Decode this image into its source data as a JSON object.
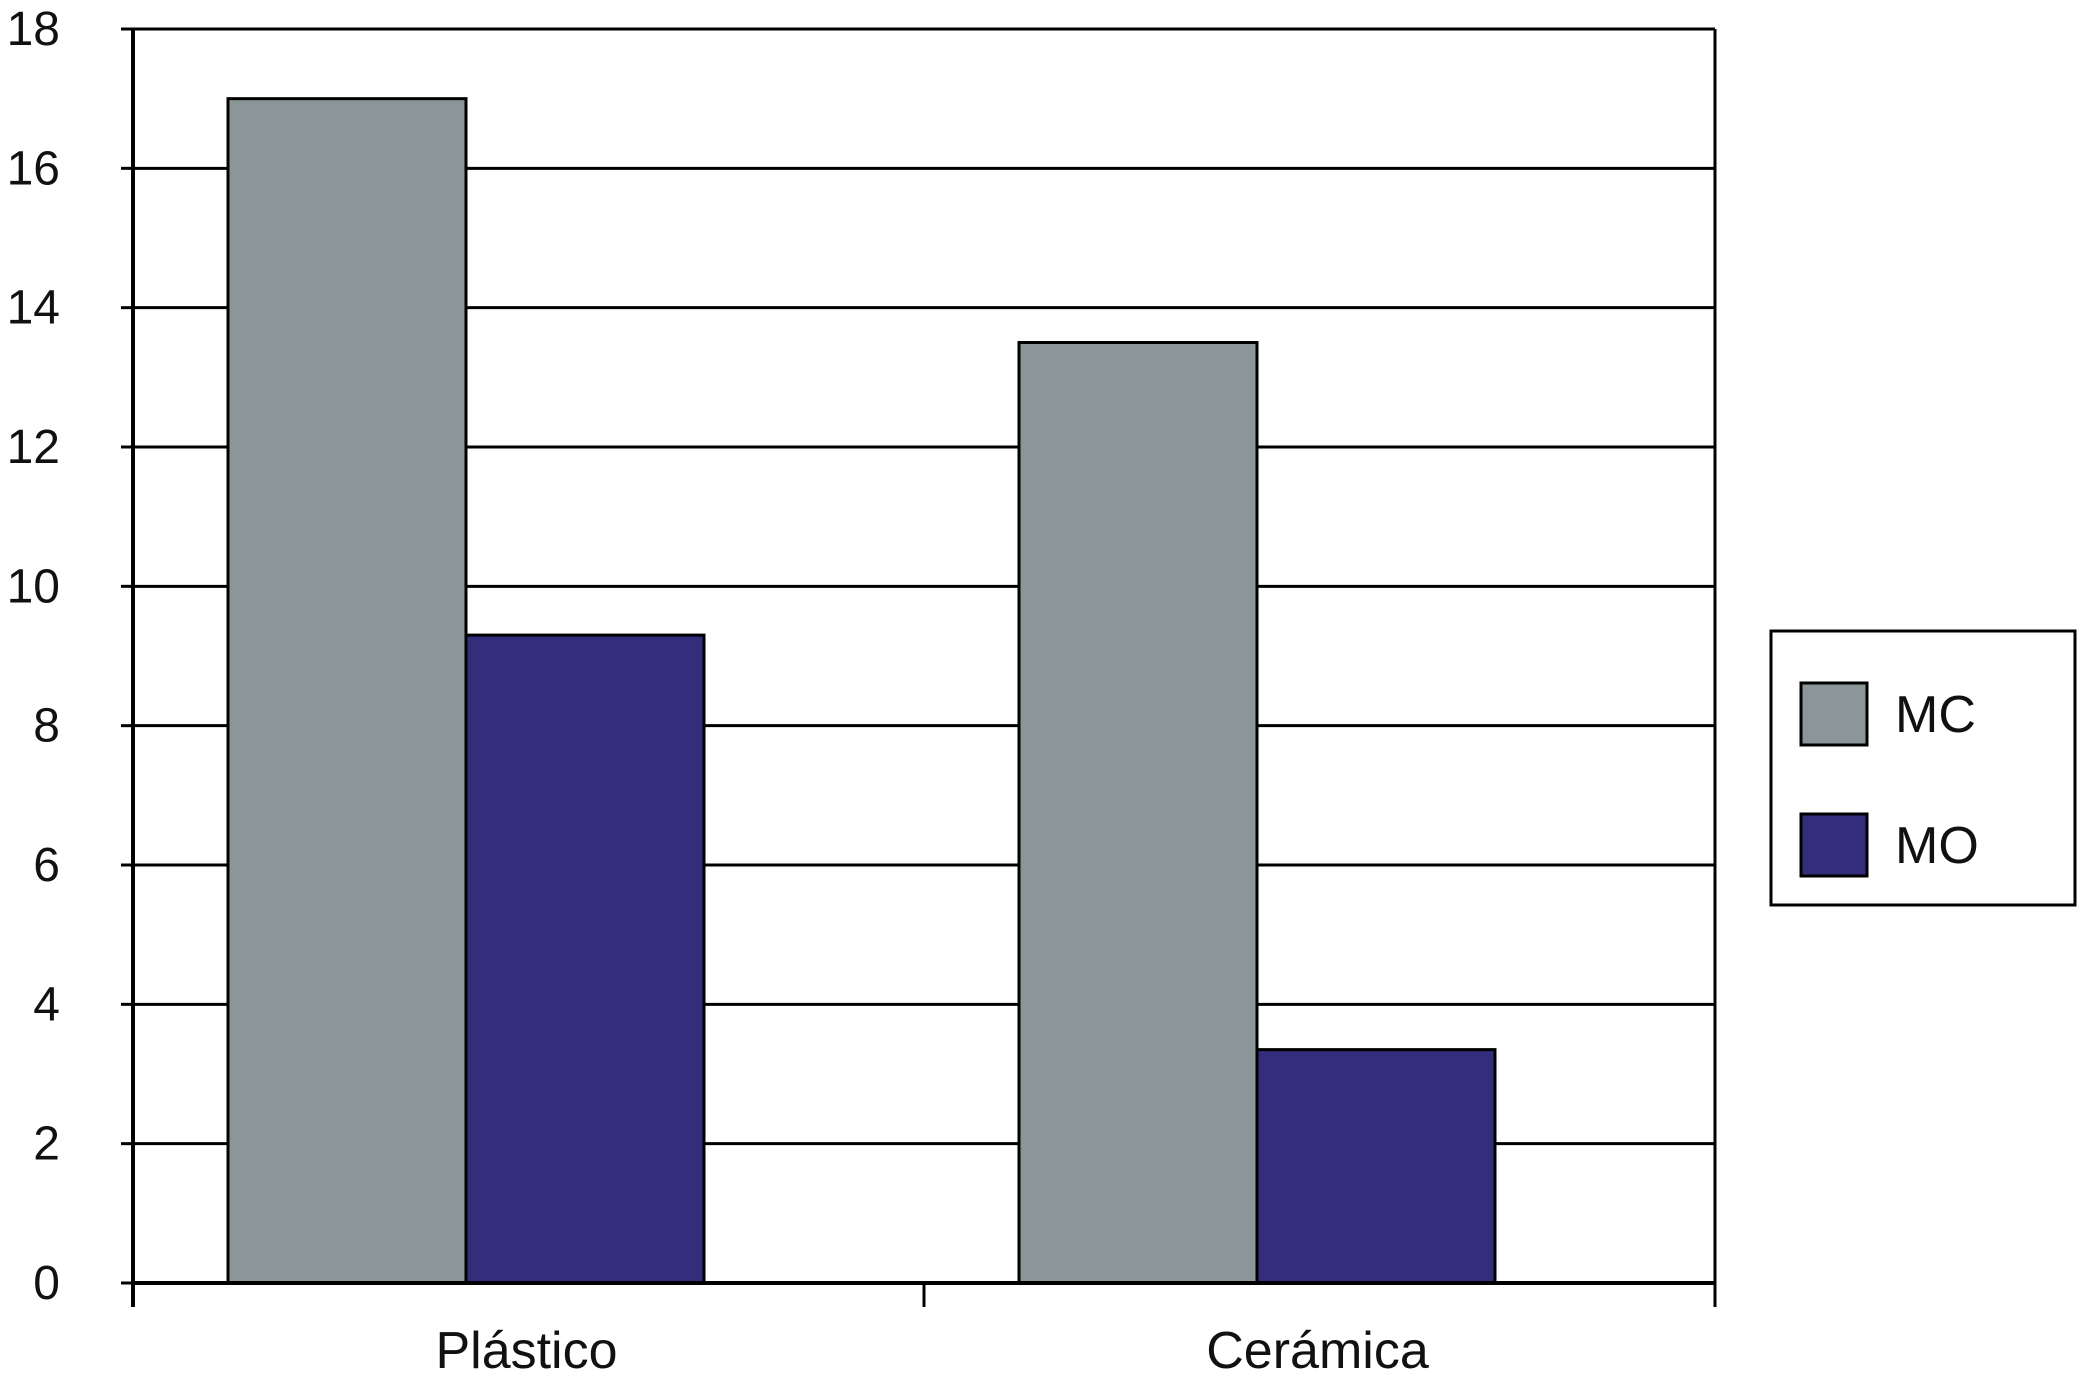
{
  "chart_data": {
    "type": "bar",
    "categories": [
      "Plástico",
      "Cerámica"
    ],
    "series": [
      {
        "name": "MC",
        "values": [
          17,
          13.5
        ],
        "color": "#8a9698"
      },
      {
        "name": "MO",
        "values": [
          9.3,
          3.35
        ],
        "color": "#332e7b"
      }
    ],
    "title": "",
    "xlabel": "",
    "ylabel": "",
    "ylim": [
      0,
      18
    ],
    "yticks": [
      0,
      2,
      4,
      6,
      8,
      10,
      12,
      14,
      16,
      18
    ],
    "ytick_labels": [
      "0",
      "2",
      "4",
      "6",
      "8",
      "10",
      "12",
      "14",
      "16",
      "18"
    ],
    "grid": true,
    "legend_position": "right"
  }
}
